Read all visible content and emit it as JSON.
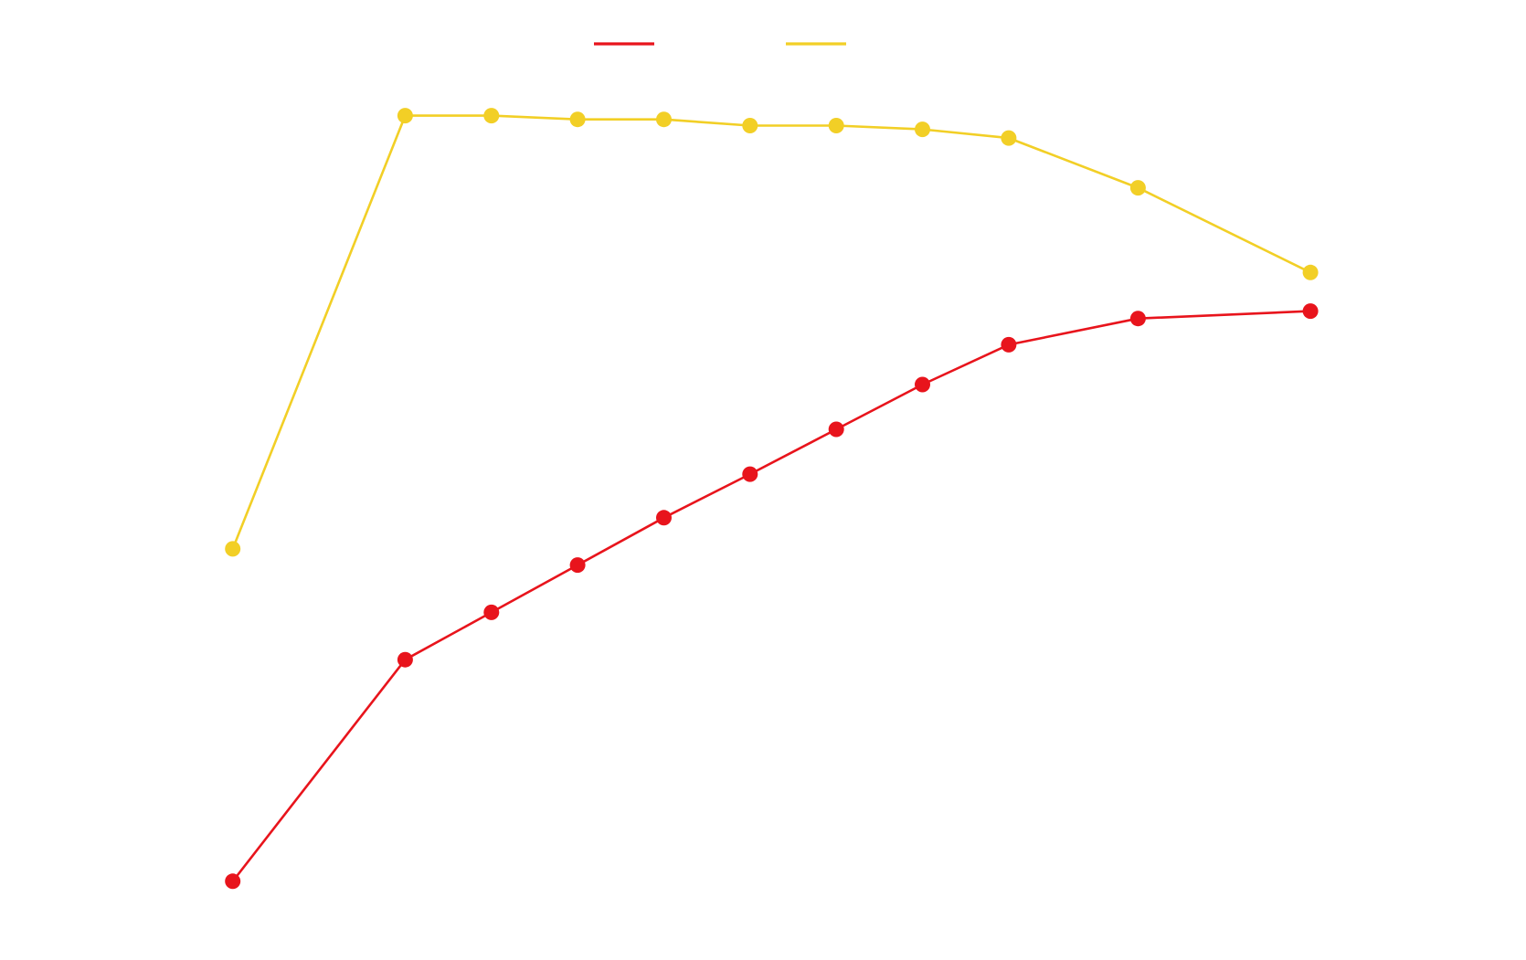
{
  "chart_data": {
    "type": "line",
    "title": "",
    "xlabel": "",
    "ylabel": "",
    "grid": false,
    "legend_position": "top-center",
    "x": [
      0,
      2,
      3,
      4,
      5,
      6,
      7,
      8,
      9,
      10.5,
      12.5
    ],
    "xlim": [
      -2.7,
      15
    ],
    "ylim": [
      0,
      100
    ],
    "series": [
      {
        "name": "",
        "color": "#e8141c",
        "marker": "circle",
        "values": [
          27.6,
          45.4,
          49.2,
          53.0,
          56.8,
          60.3,
          63.9,
          67.5,
          70.7,
          72.8,
          73.4
        ]
      },
      {
        "name": "",
        "color": "#f2cf26",
        "marker": "circle",
        "values": [
          54.3,
          89.1,
          89.1,
          88.8,
          88.8,
          88.3,
          88.3,
          88.0,
          87.3,
          83.3,
          76.5
        ]
      }
    ]
  }
}
